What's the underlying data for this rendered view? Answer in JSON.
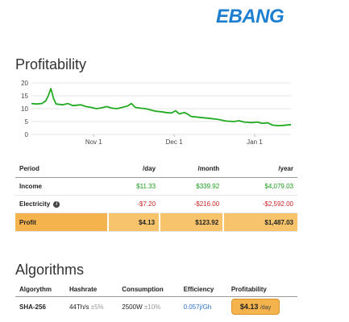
{
  "brand": {
    "logo_text": "EBANG",
    "color": "#1e7fd0"
  },
  "profitability": {
    "title": "Profitability",
    "chart_data": {
      "type": "line",
      "color": "#22aa22",
      "ylim": [
        0,
        20
      ],
      "yticks": [
        0,
        5,
        10,
        15,
        20
      ],
      "xticks": [
        {
          "label": "Nov 1",
          "x": 0.24
        },
        {
          "label": "Dec 1",
          "x": 0.55
        },
        {
          "label": "Jan 1",
          "x": 0.86
        }
      ],
      "points": [
        [
          0.0,
          12.0
        ],
        [
          0.02,
          11.8
        ],
        [
          0.04,
          12.0
        ],
        [
          0.055,
          13.0
        ],
        [
          0.065,
          15.0
        ],
        [
          0.075,
          17.8
        ],
        [
          0.085,
          14.0
        ],
        [
          0.095,
          11.8
        ],
        [
          0.12,
          11.5
        ],
        [
          0.14,
          12.0
        ],
        [
          0.16,
          11.2
        ],
        [
          0.19,
          11.5
        ],
        [
          0.21,
          10.8
        ],
        [
          0.23,
          10.5
        ],
        [
          0.25,
          10.0
        ],
        [
          0.27,
          10.3
        ],
        [
          0.29,
          10.8
        ],
        [
          0.31,
          10.2
        ],
        [
          0.33,
          10.0
        ],
        [
          0.35,
          10.5
        ],
        [
          0.37,
          11.0
        ],
        [
          0.385,
          12.0
        ],
        [
          0.4,
          10.5
        ],
        [
          0.42,
          10.2
        ],
        [
          0.44,
          10.0
        ],
        [
          0.46,
          9.5
        ],
        [
          0.48,
          9.0
        ],
        [
          0.5,
          8.8
        ],
        [
          0.52,
          8.5
        ],
        [
          0.54,
          8.3
        ],
        [
          0.555,
          9.2
        ],
        [
          0.57,
          8.0
        ],
        [
          0.59,
          8.5
        ],
        [
          0.6,
          8.0
        ],
        [
          0.615,
          7.0
        ],
        [
          0.63,
          6.8
        ],
        [
          0.66,
          6.5
        ],
        [
          0.69,
          6.2
        ],
        [
          0.72,
          5.8
        ],
        [
          0.75,
          5.2
        ],
        [
          0.78,
          5.0
        ],
        [
          0.8,
          5.3
        ],
        [
          0.82,
          4.8
        ],
        [
          0.85,
          4.6
        ],
        [
          0.87,
          4.8
        ],
        [
          0.89,
          4.3
        ],
        [
          0.91,
          4.5
        ],
        [
          0.93,
          3.6
        ],
        [
          0.95,
          3.4
        ],
        [
          0.97,
          3.5
        ],
        [
          1.0,
          3.8
        ]
      ]
    }
  },
  "summary": {
    "headers": [
      "Period",
      "/day",
      "/month",
      "/year"
    ],
    "rows": [
      {
        "label": "Income",
        "day": "$11.33",
        "month": "$339.92",
        "year": "$4,079.03"
      },
      {
        "label": "Electricity",
        "day": "-$7.20",
        "month": "-$216.00",
        "year": "-$2,592.00"
      }
    ],
    "profit": {
      "label": "Profit",
      "day": "$4.13",
      "month": "$123.92",
      "year": "$1,487.03"
    }
  },
  "algorithms": {
    "title": "Algorithms",
    "headers": [
      "Algorythm",
      "Hashrate",
      "Consumption",
      "Efficiency",
      "Profitability"
    ],
    "row": {
      "name": "SHA-256",
      "hashrate": "44Th/s",
      "hashrate_tol": "±5%",
      "consumption": "2500W",
      "consumption_tol": "±10%",
      "efficiency": "0.057j/Gh",
      "profit_value": "$4.13",
      "profit_unit": "/day"
    }
  }
}
